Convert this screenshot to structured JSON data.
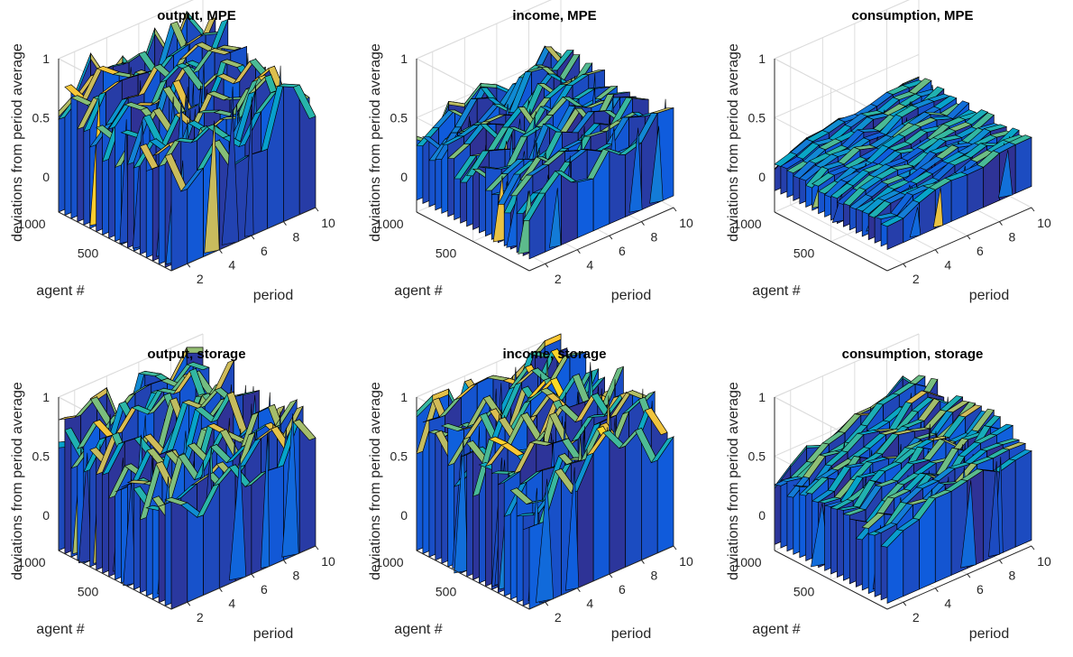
{
  "figure": {
    "panels": [
      {
        "title": "output, MPE",
        "zlabel": "deviations from period average",
        "xlabel": "period",
        "ylabel": "agent #",
        "zticks": [
          "1",
          "0.5",
          "0"
        ],
        "xticks": [
          "2",
          "4",
          "6",
          "8",
          "10"
        ],
        "yticks": [
          "1000",
          "500"
        ]
      },
      {
        "title": "income, MPE",
        "zlabel": "deviations from period average",
        "xlabel": "period",
        "ylabel": "agent #",
        "zticks": [
          "1",
          "0.5",
          "0"
        ],
        "xticks": [
          "2",
          "4",
          "6",
          "8",
          "10"
        ],
        "yticks": [
          "1000",
          "500"
        ]
      },
      {
        "title": "consumption, MPE",
        "zlabel": "deviations from period average",
        "xlabel": "period",
        "ylabel": "agent #",
        "zticks": [
          "1",
          "0.5",
          "0"
        ],
        "xticks": [
          "2",
          "4",
          "6",
          "8",
          "10"
        ],
        "yticks": [
          "1000",
          "500"
        ]
      },
      {
        "title": "output, storage",
        "zlabel": "deviations from period average",
        "xlabel": "period",
        "ylabel": "agent #",
        "zticks": [
          "1",
          "0.5",
          "0"
        ],
        "xticks": [
          "2",
          "4",
          "6",
          "8",
          "10"
        ],
        "yticks": [
          "1000",
          "500"
        ]
      },
      {
        "title": "income, storage",
        "zlabel": "deviations from period average",
        "xlabel": "period",
        "ylabel": "agent #",
        "zticks": [
          "1",
          "0.5",
          "0"
        ],
        "xticks": [
          "2",
          "4",
          "6",
          "8",
          "10"
        ],
        "yticks": [
          "1000",
          "500"
        ]
      },
      {
        "title": "consumption, storage",
        "zlabel": "deviations from period average",
        "xlabel": "period",
        "ylabel": "agent #",
        "zticks": [
          "1",
          "0.5",
          "0"
        ],
        "xticks": [
          "2",
          "4",
          "6",
          "8",
          "10"
        ],
        "yticks": [
          "1000",
          "500"
        ]
      }
    ]
  },
  "chart_data": [
    {
      "type": "surface",
      "title": "output, MPE",
      "xlabel": "period",
      "ylabel": "agent #",
      "zlabel": "deviations from period average",
      "x": [
        1,
        2,
        3,
        4,
        5,
        6,
        7,
        8,
        9,
        10
      ],
      "xlim": [
        1,
        10
      ],
      "ylim": [
        1,
        1000
      ],
      "zlim": [
        -0.3,
        1
      ],
      "grid": true,
      "colormap": [
        "#352a87",
        "#0f5cdd",
        "#1481d6",
        "#06a4ca",
        "#2eb7a4",
        "#87bf77",
        "#d1bb59",
        "#fec832",
        "#f9fb0e"
      ],
      "surface_top": [
        0.66,
        0.67,
        0.7,
        0.71,
        0.69,
        0.74,
        0.72,
        0.78,
        0.74,
        0.76
      ],
      "surface_bottom": [
        -0.3,
        -0.3,
        -0.3,
        -0.3,
        -0.3,
        -0.3,
        -0.3,
        -0.3,
        -0.3,
        -0.3
      ],
      "spread": 0.95
    },
    {
      "type": "surface",
      "title": "income, MPE",
      "xlabel": "period",
      "ylabel": "agent #",
      "zlabel": "deviations from period average",
      "x": [
        1,
        2,
        3,
        4,
        5,
        6,
        7,
        8,
        9,
        10
      ],
      "xlim": [
        1,
        10
      ],
      "ylim": [
        1,
        1000
      ],
      "zlim": [
        -0.3,
        1
      ],
      "grid": true,
      "colormap": [
        "#352a87",
        "#0f5cdd",
        "#1481d6",
        "#06a4ca",
        "#2eb7a4",
        "#87bf77",
        "#d1bb59",
        "#fec832",
        "#f9fb0e"
      ],
      "surface_top": [
        0.3,
        0.36,
        0.4,
        0.42,
        0.46,
        0.44,
        0.5,
        0.48,
        0.52,
        0.5
      ],
      "surface_bottom": [
        -0.2,
        -0.2,
        -0.2,
        -0.2,
        -0.2,
        -0.2,
        -0.2,
        -0.2,
        -0.2,
        -0.2
      ],
      "spread": 0.55
    },
    {
      "type": "surface",
      "title": "consumption, MPE",
      "xlabel": "period",
      "ylabel": "agent #",
      "zlabel": "deviations from period average",
      "x": [
        1,
        2,
        3,
        4,
        5,
        6,
        7,
        8,
        9,
        10
      ],
      "xlim": [
        1,
        10
      ],
      "ylim": [
        1,
        1000
      ],
      "zlim": [
        -0.3,
        1
      ],
      "grid": true,
      "colormap": [
        "#352a87",
        "#0f5cdd",
        "#1481d6",
        "#06a4ca",
        "#2eb7a4",
        "#87bf77",
        "#d1bb59",
        "#fec832",
        "#f9fb0e"
      ],
      "surface_top": [
        0.1,
        0.14,
        0.18,
        0.2,
        0.22,
        0.24,
        0.26,
        0.28,
        0.28,
        0.3
      ],
      "surface_bottom": [
        -0.12,
        -0.12,
        -0.12,
        -0.12,
        -0.12,
        -0.12,
        -0.12,
        -0.12,
        -0.12,
        -0.12
      ],
      "spread": 0.15
    },
    {
      "type": "surface",
      "title": "output, storage",
      "xlabel": "period",
      "ylabel": "agent #",
      "zlabel": "deviations from period average",
      "x": [
        1,
        2,
        3,
        4,
        5,
        6,
        7,
        8,
        9,
        10
      ],
      "xlim": [
        1,
        10
      ],
      "ylim": [
        1,
        1000
      ],
      "zlim": [
        -0.3,
        1
      ],
      "grid": true,
      "colormap": [
        "#352a87",
        "#0f5cdd",
        "#1481d6",
        "#06a4ca",
        "#2eb7a4",
        "#87bf77",
        "#d1bb59",
        "#fec832",
        "#f9fb0e"
      ],
      "surface_top": [
        0.66,
        0.67,
        0.7,
        0.71,
        0.69,
        0.74,
        0.72,
        0.78,
        0.74,
        0.76
      ],
      "surface_bottom": [
        -0.3,
        -0.3,
        -0.3,
        -0.3,
        -0.3,
        -0.3,
        -0.3,
        -0.3,
        -0.3,
        -0.3
      ],
      "spread": 0.95
    },
    {
      "type": "surface",
      "title": "income, storage",
      "xlabel": "period",
      "ylabel": "agent #",
      "zlabel": "deviations from period average",
      "x": [
        1,
        2,
        3,
        4,
        5,
        6,
        7,
        8,
        9,
        10
      ],
      "xlim": [
        1,
        10
      ],
      "ylim": [
        1,
        1000
      ],
      "zlim": [
        -0.3,
        1
      ],
      "grid": true,
      "colormap": [
        "#352a87",
        "#0f5cdd",
        "#1481d6",
        "#06a4ca",
        "#2eb7a4",
        "#87bf77",
        "#d1bb59",
        "#fec832",
        "#f9fb0e"
      ],
      "surface_top": [
        0.74,
        0.76,
        0.8,
        0.82,
        0.84,
        0.86,
        0.88,
        0.9,
        0.86,
        0.88
      ],
      "surface_bottom": [
        -0.3,
        -0.3,
        -0.3,
        -0.3,
        -0.3,
        -0.3,
        -0.3,
        -0.3,
        -0.3,
        -0.3
      ],
      "spread": 0.95
    },
    {
      "type": "surface",
      "title": "consumption, storage",
      "xlabel": "period",
      "ylabel": "agent #",
      "zlabel": "deviations from period average",
      "x": [
        1,
        2,
        3,
        4,
        5,
        6,
        7,
        8,
        9,
        10
      ],
      "xlim": [
        1,
        10
      ],
      "ylim": [
        1,
        1000
      ],
      "zlim": [
        -0.3,
        1
      ],
      "grid": true,
      "colormap": [
        "#352a87",
        "#0f5cdd",
        "#1481d6",
        "#06a4ca",
        "#2eb7a4",
        "#87bf77",
        "#d1bb59",
        "#fec832",
        "#f9fb0e"
      ],
      "surface_top": [
        0.3,
        0.36,
        0.42,
        0.46,
        0.5,
        0.52,
        0.56,
        0.58,
        0.62,
        0.64
      ],
      "surface_bottom": [
        -0.25,
        -0.25,
        -0.25,
        -0.25,
        -0.25,
        -0.25,
        -0.25,
        -0.25,
        -0.25,
        -0.25
      ],
      "spread": 0.35
    }
  ]
}
